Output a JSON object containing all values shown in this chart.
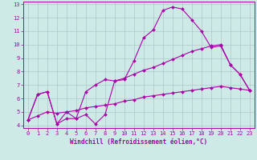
{
  "xlabel": "Windchill (Refroidissement éolien,°C)",
  "xlim": [
    -0.5,
    23.5
  ],
  "ylim": [
    3.8,
    13.2
  ],
  "xticks": [
    0,
    1,
    2,
    3,
    4,
    5,
    6,
    7,
    8,
    9,
    10,
    11,
    12,
    13,
    14,
    15,
    16,
    17,
    18,
    19,
    20,
    21,
    22,
    23
  ],
  "yticks": [
    4,
    5,
    6,
    7,
    8,
    9,
    10,
    11,
    12,
    13
  ],
  "background_color": "#ceeae7",
  "grid_color": "#b0c8c8",
  "line_color": "#aa00aa",
  "line1_x": [
    0,
    1,
    2,
    3,
    4,
    5,
    6,
    7,
    8,
    9,
    10,
    11,
    12,
    13,
    14,
    15,
    16,
    17,
    18,
    19,
    20,
    21,
    22,
    23
  ],
  "line1_y": [
    4.4,
    6.3,
    6.5,
    4.1,
    5.0,
    4.5,
    4.8,
    4.1,
    4.8,
    7.3,
    7.4,
    8.8,
    10.5,
    11.1,
    12.55,
    12.8,
    12.65,
    11.85,
    11.0,
    9.8,
    9.9,
    8.5,
    7.8,
    6.6
  ],
  "line2_x": [
    0,
    1,
    2,
    3,
    4,
    5,
    6,
    7,
    8,
    9,
    10,
    11,
    12,
    13,
    14,
    15,
    16,
    17,
    18,
    19,
    20,
    21,
    22,
    23
  ],
  "line2_y": [
    4.4,
    6.3,
    6.5,
    4.1,
    4.5,
    4.5,
    6.5,
    7.0,
    7.4,
    7.3,
    7.5,
    7.8,
    8.1,
    8.3,
    8.6,
    8.9,
    9.2,
    9.5,
    9.7,
    9.9,
    10.0,
    8.5,
    7.8,
    6.6
  ],
  "line3_x": [
    0,
    1,
    2,
    3,
    4,
    5,
    6,
    7,
    8,
    9,
    10,
    11,
    12,
    13,
    14,
    15,
    16,
    17,
    18,
    19,
    20,
    21,
    22,
    23
  ],
  "line3_y": [
    4.4,
    4.7,
    5.0,
    4.9,
    5.0,
    5.1,
    5.3,
    5.4,
    5.5,
    5.6,
    5.8,
    5.9,
    6.1,
    6.2,
    6.3,
    6.4,
    6.5,
    6.6,
    6.7,
    6.8,
    6.9,
    6.8,
    6.7,
    6.6
  ],
  "marker": "D",
  "marker_size": 2.0,
  "line_width": 0.8,
  "tick_fontsize": 5.0,
  "label_fontsize": 5.5
}
